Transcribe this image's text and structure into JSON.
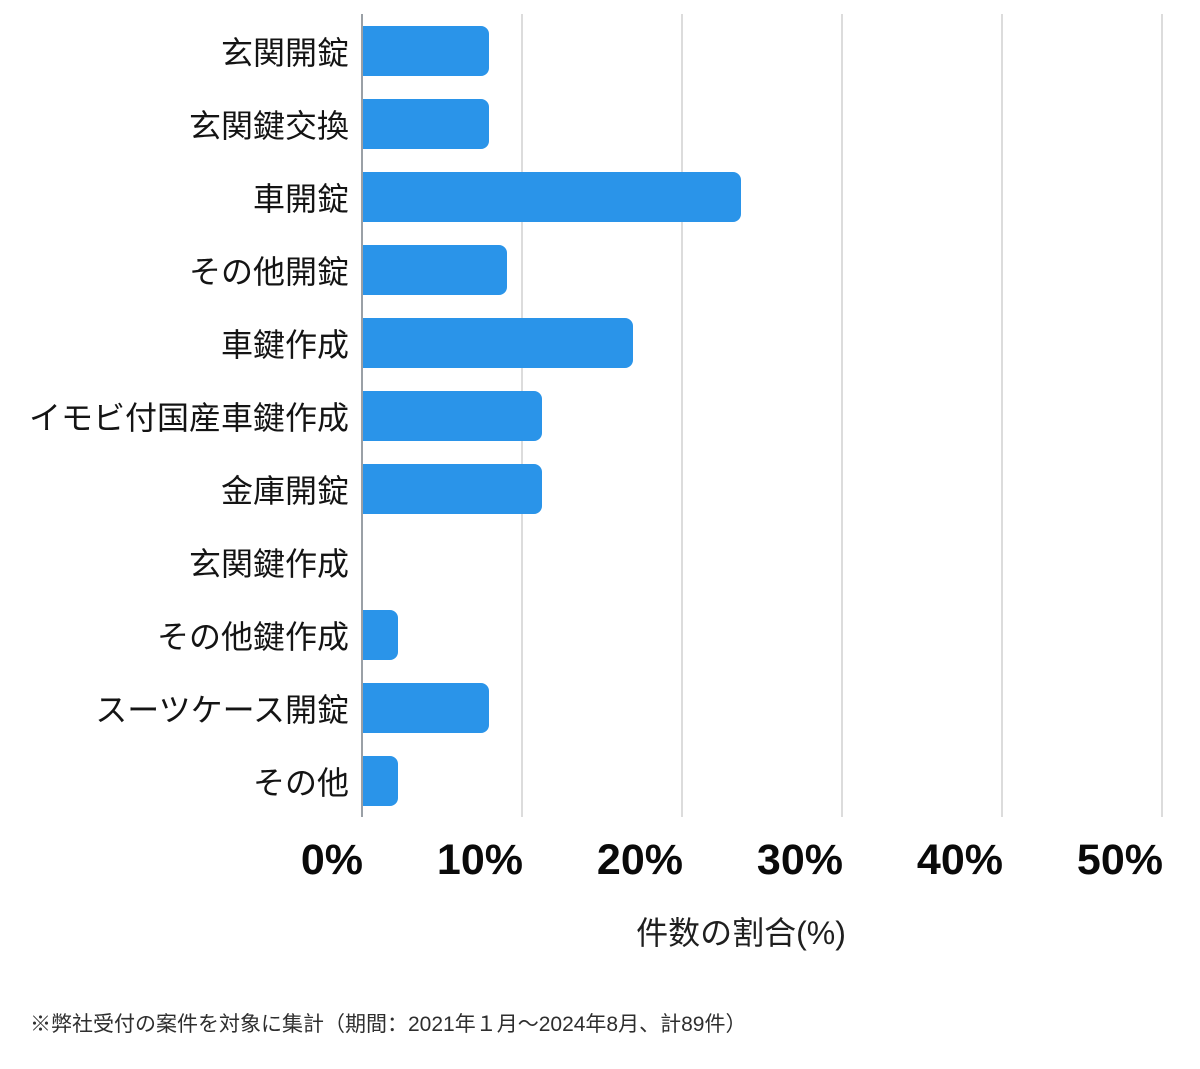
{
  "chart_data": {
    "type": "bar",
    "orientation": "horizontal",
    "categories": [
      "玄関開錠",
      "玄関鍵交換",
      "車開錠",
      "その他開錠",
      "車鍵作成",
      "イモビ付国産車鍵作成",
      "金庫開錠",
      "玄関鍵作成",
      "その他鍵作成",
      "スーツケース開錠",
      "その他"
    ],
    "values": [
      7.9,
      7.9,
      23.6,
      9.0,
      16.9,
      11.2,
      11.2,
      0,
      2.2,
      7.9,
      2.2
    ],
    "values_unit": "percent",
    "title": "",
    "xlabel": "件数の割合(%)",
    "ylabel": "",
    "x_ticks": [
      "0%",
      "10%",
      "20%",
      "30%",
      "40%",
      "50%"
    ],
    "xlim": [
      0,
      50
    ],
    "grid": "vertical-only",
    "legend": "none",
    "bar_color": "#2A94E9",
    "gridline_color": "#dcdcdc",
    "axis_line_color": "#9aa0a6",
    "footnote": "※弊社受付の案件を対象に集計（期間：2021年１月〜2024年8月、計89件）"
  }
}
